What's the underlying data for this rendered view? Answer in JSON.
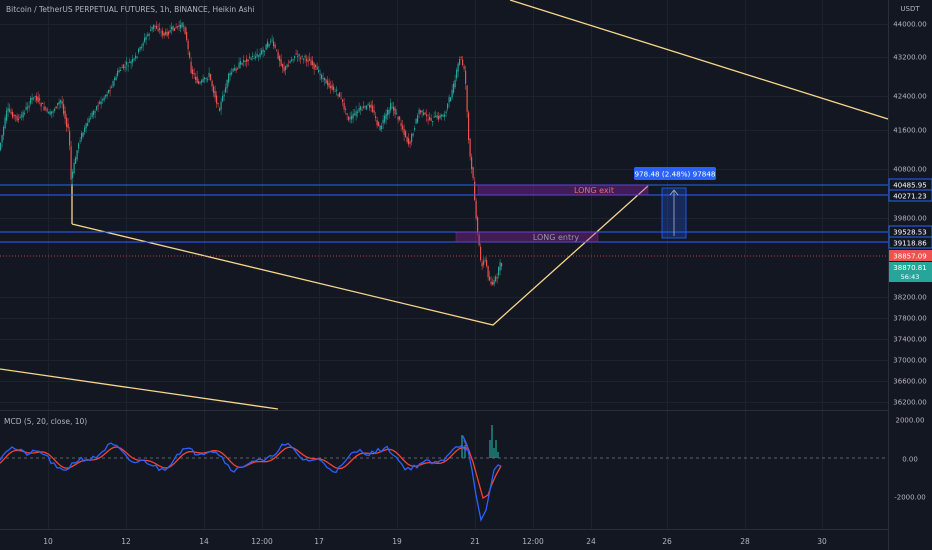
{
  "header": {
    "title": "Bitcoin / TetherUS PERPETUAL FUTURES, 1h, BINANCE, Heikin Ashi",
    "currency": "USDT"
  },
  "macd_panel": {
    "label": "MCD (5, 20, close, 10)"
  },
  "annotations": {
    "long_exit_label": "LONG exit",
    "long_entry_label": "LONG entry",
    "measure_label": "978.48 (2.48%) 97848"
  },
  "price_tags": {
    "exit_upper": "40485.95",
    "exit_lower": "40271.23",
    "entry_upper": "39528.53",
    "entry_lower": "39118.86",
    "last_price": "38857.09",
    "current": "38870.81",
    "countdown": "56:43"
  },
  "colors": {
    "background": "#131722",
    "up_candle": "#26a69a",
    "down_candle": "#ef5350",
    "trendline": "#f7d58b",
    "level_line": "#2962ff",
    "macd_line": "#2962ff",
    "signal_line": "#f44336",
    "histogram": "#26a69a",
    "measure_tag": "#2962ff"
  },
  "chart_data": [
    {
      "type": "candlestick",
      "title": "Bitcoin / TetherUS PERPETUAL FUTURES, 1h, BINANCE, Heikin Ashi",
      "y_axis_ticks": [
        "44000.00",
        "43200.00",
        "42400.00",
        "41600.00",
        "40800.00",
        "39800.00",
        "38200.00",
        "37800.00",
        "37400.00",
        "37000.00",
        "36600.00",
        "36200.00"
      ],
      "x_axis_ticks": [
        "10",
        "12",
        "14",
        "12:00",
        "17",
        "19",
        "21",
        "12:00",
        "24",
        "26",
        "28",
        "30"
      ],
      "levels": [
        40485.95,
        40271.23,
        39528.53,
        39118.86
      ],
      "trend_path_anchors": [
        {
          "x": "Feb 10 ~10:00",
          "y": 39500
        },
        {
          "x": "Feb 21 ~12:00",
          "y": 37750
        },
        {
          "x": "Feb 25 ~12:00",
          "y": 40650
        }
      ]
    },
    {
      "type": "line",
      "title": "MCD (5, 20, close, 10)",
      "y_axis_ticks": [
        "2000.00",
        "0.00",
        "-2000.00"
      ],
      "series": [
        {
          "values": []
        },
        {
          "values": []
        }
      ]
    }
  ]
}
